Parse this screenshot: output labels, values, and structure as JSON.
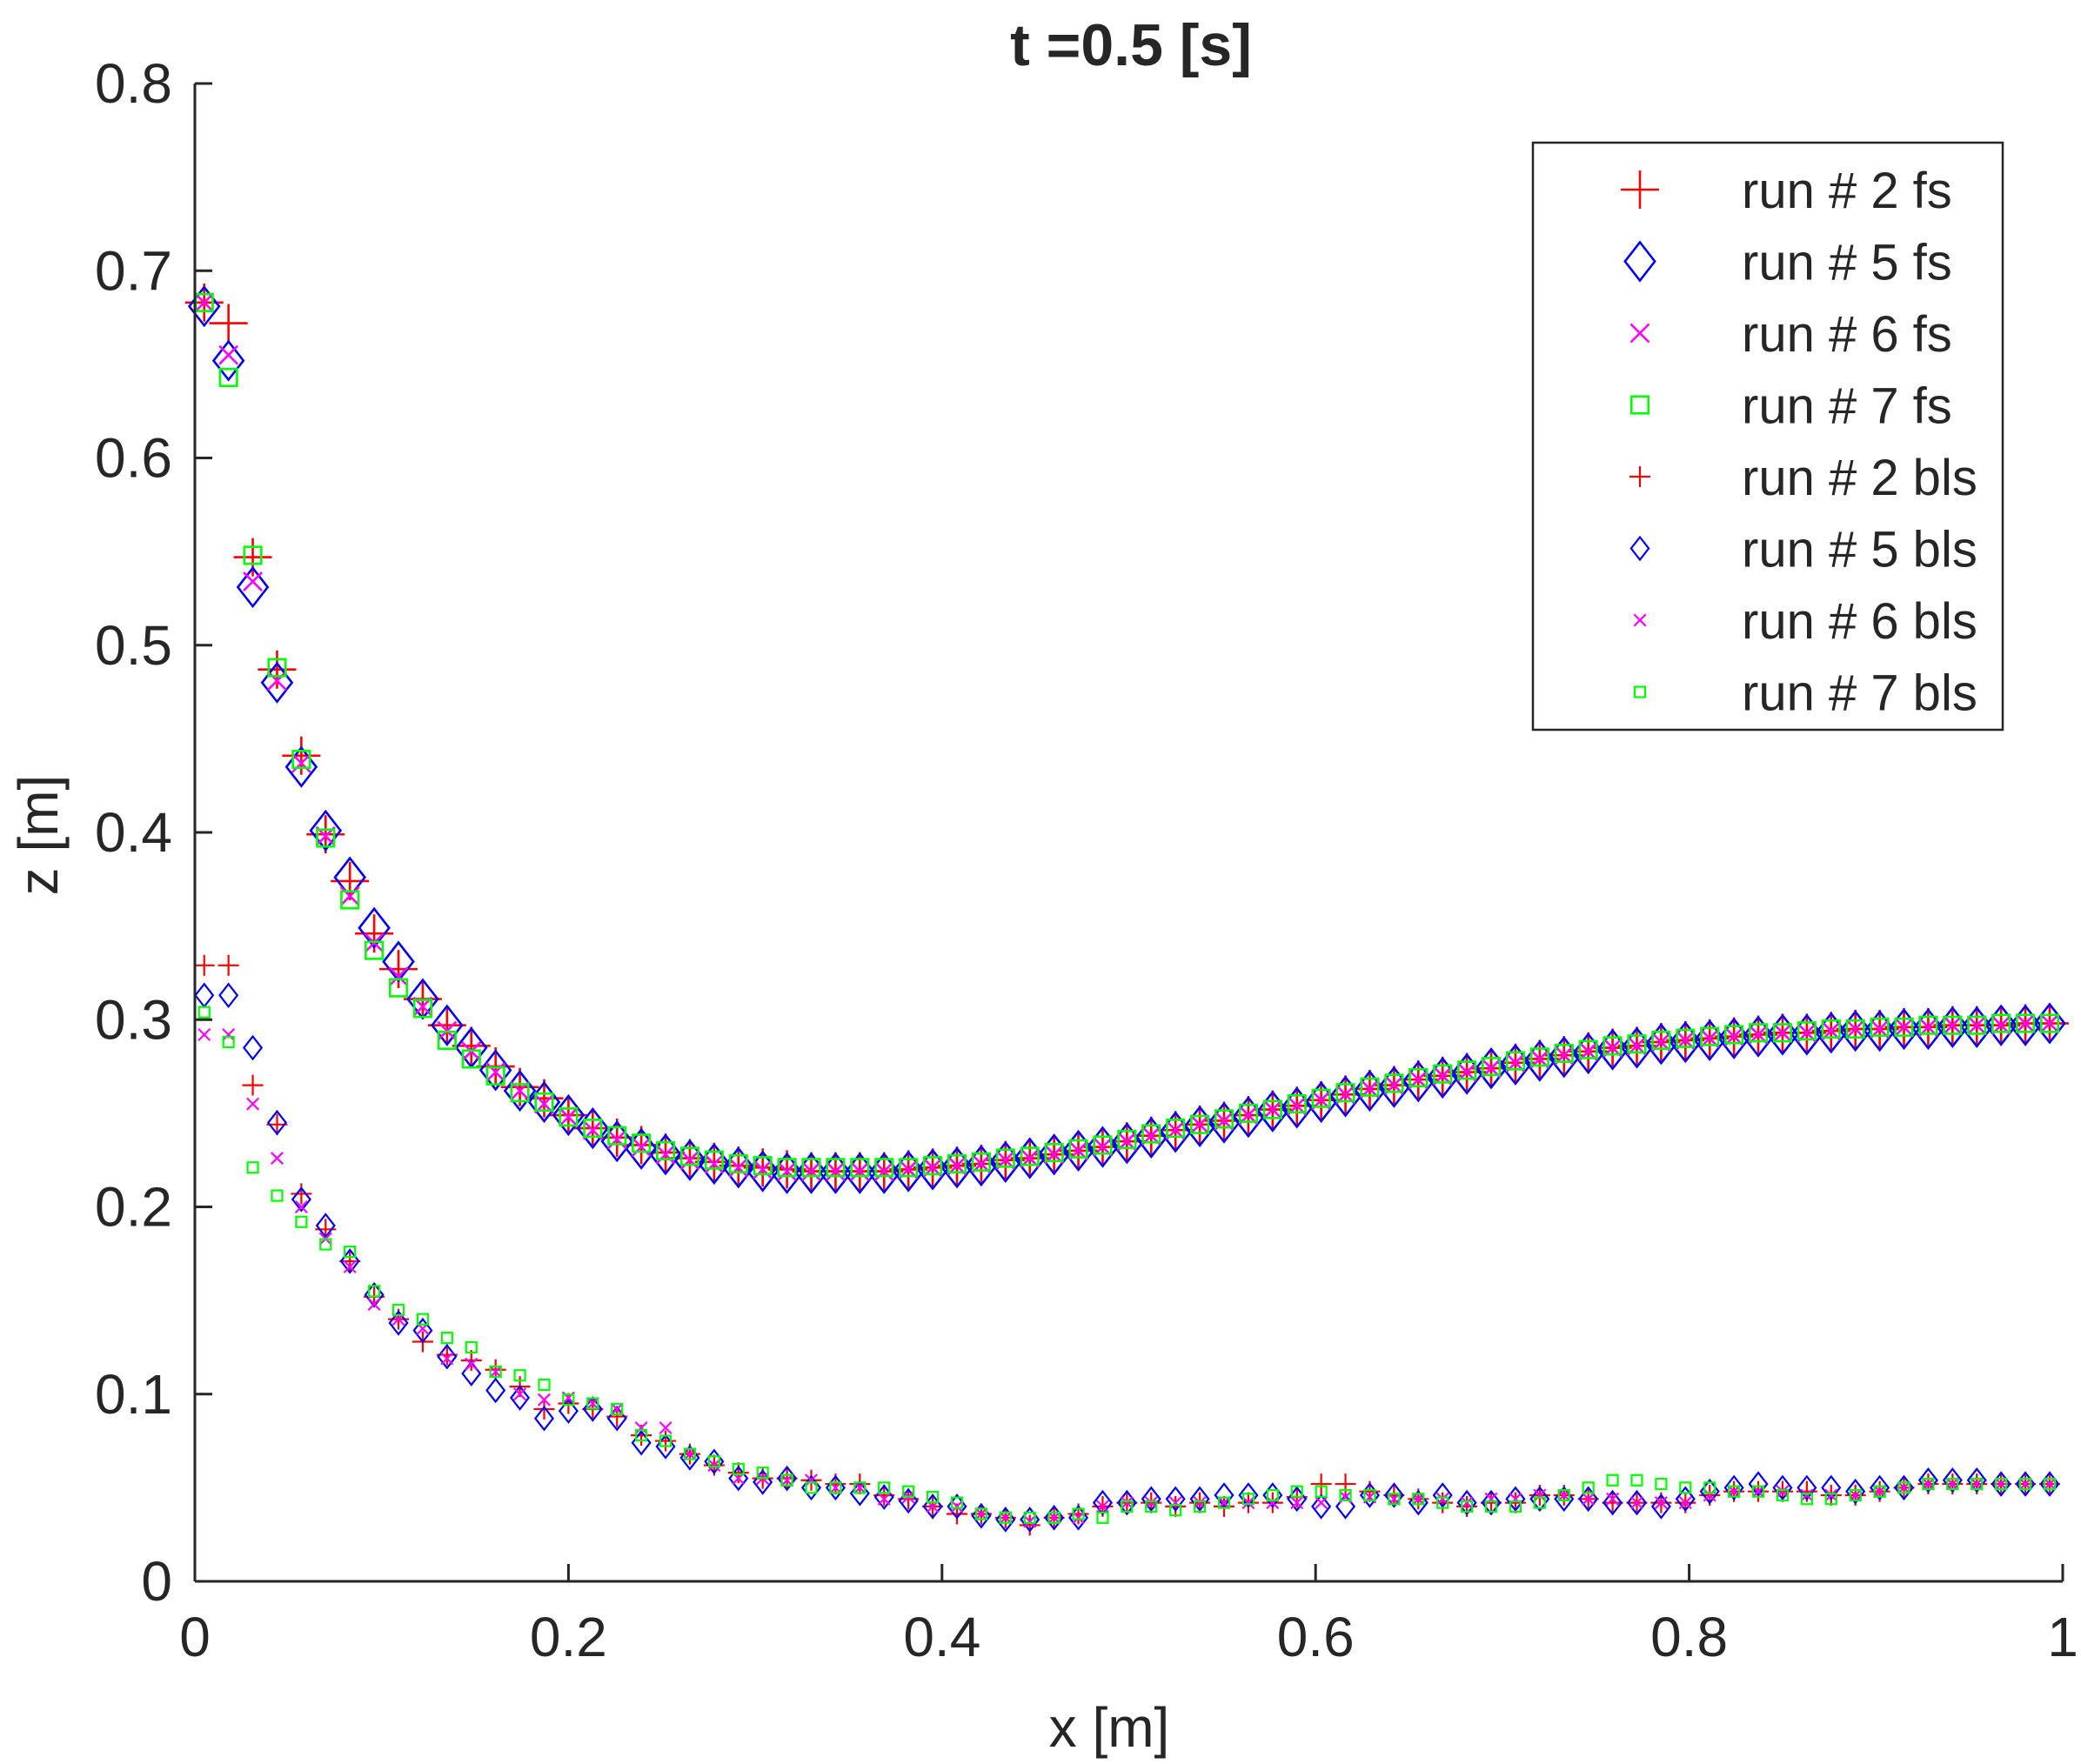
{
  "chart_data": {
    "type": "scatter",
    "title": "t =0.5 [s]",
    "xlabel": "x [m]",
    "ylabel": "z [m]",
    "xlim": [
      0,
      1
    ],
    "ylim": [
      0,
      0.8
    ],
    "grid": false,
    "legend_position": "top-right",
    "x_ticks": [
      0,
      0.2,
      0.4,
      0.6,
      0.8,
      1
    ],
    "x_tick_labels": [
      "0",
      "0.2",
      "0.4",
      "0.6",
      "0.8",
      "1"
    ],
    "y_ticks": [
      0,
      0.1,
      0.2,
      0.3,
      0.4,
      0.5,
      0.6,
      0.7,
      0.8
    ],
    "y_tick_labels": [
      "0",
      "0.1",
      "0.2",
      "0.3",
      "0.4",
      "0.5",
      "0.6",
      "0.7",
      "0.8"
    ],
    "x": [
      0.005,
      0.018,
      0.031,
      0.044,
      0.057,
      0.07,
      0.083,
      0.096,
      0.109,
      0.122,
      0.135,
      0.148,
      0.161,
      0.174,
      0.187,
      0.2,
      0.213,
      0.226,
      0.239,
      0.252,
      0.265,
      0.278,
      0.291,
      0.304,
      0.317,
      0.33,
      0.343,
      0.356,
      0.369,
      0.382,
      0.395,
      0.408,
      0.421,
      0.434,
      0.447,
      0.46,
      0.473,
      0.486,
      0.499,
      0.512,
      0.525,
      0.538,
      0.551,
      0.564,
      0.577,
      0.59,
      0.603,
      0.616,
      0.629,
      0.642,
      0.655,
      0.668,
      0.681,
      0.694,
      0.707,
      0.72,
      0.733,
      0.746,
      0.759,
      0.772,
      0.785,
      0.798,
      0.811,
      0.824,
      0.837,
      0.85,
      0.863,
      0.876,
      0.889,
      0.902,
      0.915,
      0.928,
      0.941,
      0.954,
      0.967,
      0.98,
      0.993
    ],
    "series": [
      {
        "name": "run # 2 fs",
        "color": "#ff0000",
        "marker": "plus",
        "size": "large",
        "values": [
          0.683,
          0.672,
          0.547,
          0.487,
          0.441,
          0.399,
          0.374,
          0.346,
          0.327,
          0.311,
          0.297,
          0.286,
          0.275,
          0.264,
          0.258,
          0.249,
          0.242,
          0.237,
          0.233,
          0.229,
          0.226,
          0.224,
          0.222,
          0.221,
          0.22,
          0.219,
          0.219,
          0.219,
          0.219,
          0.22,
          0.221,
          0.222,
          0.223,
          0.225,
          0.226,
          0.228,
          0.23,
          0.232,
          0.235,
          0.238,
          0.241,
          0.244,
          0.246,
          0.249,
          0.252,
          0.254,
          0.257,
          0.26,
          0.263,
          0.265,
          0.268,
          0.27,
          0.272,
          0.274,
          0.277,
          0.279,
          0.281,
          0.283,
          0.285,
          0.286,
          0.288,
          0.289,
          0.29,
          0.291,
          0.292,
          0.293,
          0.293,
          0.294,
          0.295,
          0.295,
          0.296,
          0.296,
          0.297,
          0.297,
          0.297,
          0.298,
          0.298
        ]
      },
      {
        "name": "run # 5 fs",
        "color": "#0000ff",
        "marker": "diamond",
        "size": "large",
        "values": [
          0.681,
          0.652,
          0.531,
          0.48,
          0.435,
          0.401,
          0.376,
          0.349,
          0.331,
          0.311,
          0.297,
          0.285,
          0.273,
          0.262,
          0.256,
          0.249,
          0.242,
          0.235,
          0.231,
          0.228,
          0.225,
          0.223,
          0.221,
          0.219,
          0.218,
          0.218,
          0.218,
          0.218,
          0.218,
          0.219,
          0.22,
          0.221,
          0.222,
          0.224,
          0.226,
          0.228,
          0.23,
          0.232,
          0.234,
          0.237,
          0.24,
          0.243,
          0.245,
          0.248,
          0.251,
          0.253,
          0.256,
          0.259,
          0.262,
          0.264,
          0.267,
          0.269,
          0.271,
          0.274,
          0.276,
          0.278,
          0.28,
          0.282,
          0.284,
          0.285,
          0.287,
          0.288,
          0.289,
          0.29,
          0.291,
          0.292,
          0.292,
          0.293,
          0.294,
          0.294,
          0.295,
          0.295,
          0.296,
          0.296,
          0.297,
          0.297,
          0.298
        ]
      },
      {
        "name": "run # 6 fs",
        "color": "#ff00ff",
        "marker": "x",
        "size": "large",
        "values": [
          0.683,
          0.655,
          0.534,
          0.481,
          0.437,
          0.398,
          0.366,
          0.341,
          0.323,
          0.307,
          0.294,
          0.283,
          0.272,
          0.262,
          0.255,
          0.248,
          0.241,
          0.236,
          0.232,
          0.228,
          0.225,
          0.223,
          0.221,
          0.22,
          0.219,
          0.219,
          0.219,
          0.219,
          0.219,
          0.22,
          0.221,
          0.222,
          0.223,
          0.225,
          0.226,
          0.228,
          0.23,
          0.232,
          0.235,
          0.238,
          0.241,
          0.244,
          0.246,
          0.249,
          0.252,
          0.254,
          0.257,
          0.26,
          0.263,
          0.265,
          0.268,
          0.27,
          0.272,
          0.274,
          0.277,
          0.279,
          0.281,
          0.283,
          0.285,
          0.286,
          0.288,
          0.289,
          0.29,
          0.291,
          0.292,
          0.293,
          0.293,
          0.294,
          0.295,
          0.295,
          0.296,
          0.296,
          0.297,
          0.297,
          0.297,
          0.298,
          0.298
        ]
      },
      {
        "name": "run # 7 fs",
        "color": "#00ff00",
        "marker": "square",
        "size": "large",
        "values": [
          0.683,
          0.643,
          0.548,
          0.488,
          0.439,
          0.397,
          0.364,
          0.337,
          0.317,
          0.306,
          0.289,
          0.279,
          0.27,
          0.261,
          0.256,
          0.248,
          0.242,
          0.238,
          0.234,
          0.23,
          0.227,
          0.225,
          0.223,
          0.222,
          0.221,
          0.221,
          0.221,
          0.221,
          0.221,
          0.221,
          0.222,
          0.223,
          0.224,
          0.226,
          0.227,
          0.229,
          0.231,
          0.233,
          0.236,
          0.239,
          0.242,
          0.244,
          0.247,
          0.25,
          0.252,
          0.255,
          0.258,
          0.261,
          0.264,
          0.266,
          0.269,
          0.271,
          0.273,
          0.275,
          0.278,
          0.28,
          0.282,
          0.284,
          0.286,
          0.287,
          0.289,
          0.29,
          0.291,
          0.292,
          0.293,
          0.293,
          0.294,
          0.295,
          0.295,
          0.296,
          0.296,
          0.297,
          0.297,
          0.297,
          0.298,
          0.298,
          0.298
        ]
      },
      {
        "name": "run # 2 bls",
        "color": "#ff0000",
        "marker": "plus",
        "size": "small",
        "values": [
          0.329,
          0.329,
          0.265,
          0.244,
          0.207,
          0.188,
          0.171,
          0.152,
          0.14,
          0.128,
          0.121,
          0.118,
          0.113,
          0.104,
          0.092,
          0.095,
          0.092,
          0.088,
          0.078,
          0.075,
          0.068,
          0.062,
          0.058,
          0.055,
          0.055,
          0.054,
          0.052,
          0.052,
          0.046,
          0.044,
          0.04,
          0.036,
          0.036,
          0.034,
          0.03,
          0.034,
          0.036,
          0.04,
          0.042,
          0.042,
          0.04,
          0.042,
          0.04,
          0.042,
          0.042,
          0.045,
          0.052,
          0.052,
          0.048,
          0.046,
          0.044,
          0.042,
          0.04,
          0.042,
          0.042,
          0.046,
          0.046,
          0.044,
          0.042,
          0.042,
          0.042,
          0.042,
          0.046,
          0.048,
          0.048,
          0.048,
          0.048,
          0.046,
          0.046,
          0.048,
          0.05,
          0.052,
          0.052,
          0.052,
          0.052,
          0.052,
          0.052
        ]
      },
      {
        "name": "run # 5 bls",
        "color": "#0000ff",
        "marker": "diamond",
        "size": "small",
        "values": [
          0.313,
          0.313,
          0.285,
          0.245,
          0.204,
          0.19,
          0.171,
          0.153,
          0.138,
          0.134,
          0.12,
          0.111,
          0.102,
          0.098,
          0.087,
          0.091,
          0.092,
          0.087,
          0.074,
          0.072,
          0.066,
          0.064,
          0.055,
          0.053,
          0.055,
          0.05,
          0.05,
          0.047,
          0.045,
          0.043,
          0.04,
          0.04,
          0.035,
          0.033,
          0.033,
          0.034,
          0.034,
          0.042,
          0.042,
          0.044,
          0.044,
          0.044,
          0.046,
          0.046,
          0.046,
          0.044,
          0.04,
          0.04,
          0.046,
          0.046,
          0.042,
          0.046,
          0.042,
          0.042,
          0.044,
          0.044,
          0.044,
          0.044,
          0.042,
          0.042,
          0.04,
          0.044,
          0.048,
          0.05,
          0.052,
          0.05,
          0.05,
          0.05,
          0.048,
          0.05,
          0.05,
          0.054,
          0.054,
          0.054,
          0.052,
          0.052,
          0.052
        ]
      },
      {
        "name": "run # 6 bls",
        "color": "#ff00ff",
        "marker": "x",
        "size": "small",
        "values": [
          0.292,
          0.292,
          0.255,
          0.226,
          0.2,
          0.183,
          0.168,
          0.148,
          0.14,
          0.135,
          0.119,
          0.116,
          0.112,
          0.1,
          0.097,
          0.098,
          0.095,
          0.092,
          0.082,
          0.082,
          0.068,
          0.062,
          0.055,
          0.055,
          0.054,
          0.054,
          0.05,
          0.05,
          0.044,
          0.045,
          0.04,
          0.04,
          0.036,
          0.034,
          0.032,
          0.034,
          0.034,
          0.04,
          0.042,
          0.042,
          0.042,
          0.042,
          0.042,
          0.042,
          0.042,
          0.042,
          0.042,
          0.045,
          0.045,
          0.044,
          0.044,
          0.044,
          0.042,
          0.044,
          0.044,
          0.046,
          0.046,
          0.044,
          0.044,
          0.042,
          0.042,
          0.042,
          0.046,
          0.048,
          0.048,
          0.048,
          0.046,
          0.046,
          0.046,
          0.048,
          0.05,
          0.052,
          0.052,
          0.052,
          0.052,
          0.052,
          0.052
        ]
      },
      {
        "name": "run # 7 bls",
        "color": "#00ff00",
        "marker": "square",
        "size": "small",
        "values": [
          0.304,
          0.288,
          0.221,
          0.206,
          0.192,
          0.18,
          0.176,
          0.155,
          0.145,
          0.14,
          0.13,
          0.125,
          0.112,
          0.11,
          0.105,
          0.097,
          0.095,
          0.092,
          0.078,
          0.075,
          0.068,
          0.064,
          0.06,
          0.058,
          0.054,
          0.05,
          0.05,
          0.05,
          0.05,
          0.048,
          0.045,
          0.042,
          0.036,
          0.034,
          0.034,
          0.034,
          0.036,
          0.034,
          0.04,
          0.04,
          0.038,
          0.04,
          0.042,
          0.044,
          0.046,
          0.048,
          0.048,
          0.046,
          0.046,
          0.044,
          0.044,
          0.042,
          0.04,
          0.04,
          0.04,
          0.042,
          0.046,
          0.05,
          0.054,
          0.054,
          0.052,
          0.05,
          0.05,
          0.048,
          0.048,
          0.046,
          0.044,
          0.044,
          0.046,
          0.048,
          0.05,
          0.052,
          0.052,
          0.052,
          0.052,
          0.052,
          0.052
        ]
      }
    ]
  }
}
